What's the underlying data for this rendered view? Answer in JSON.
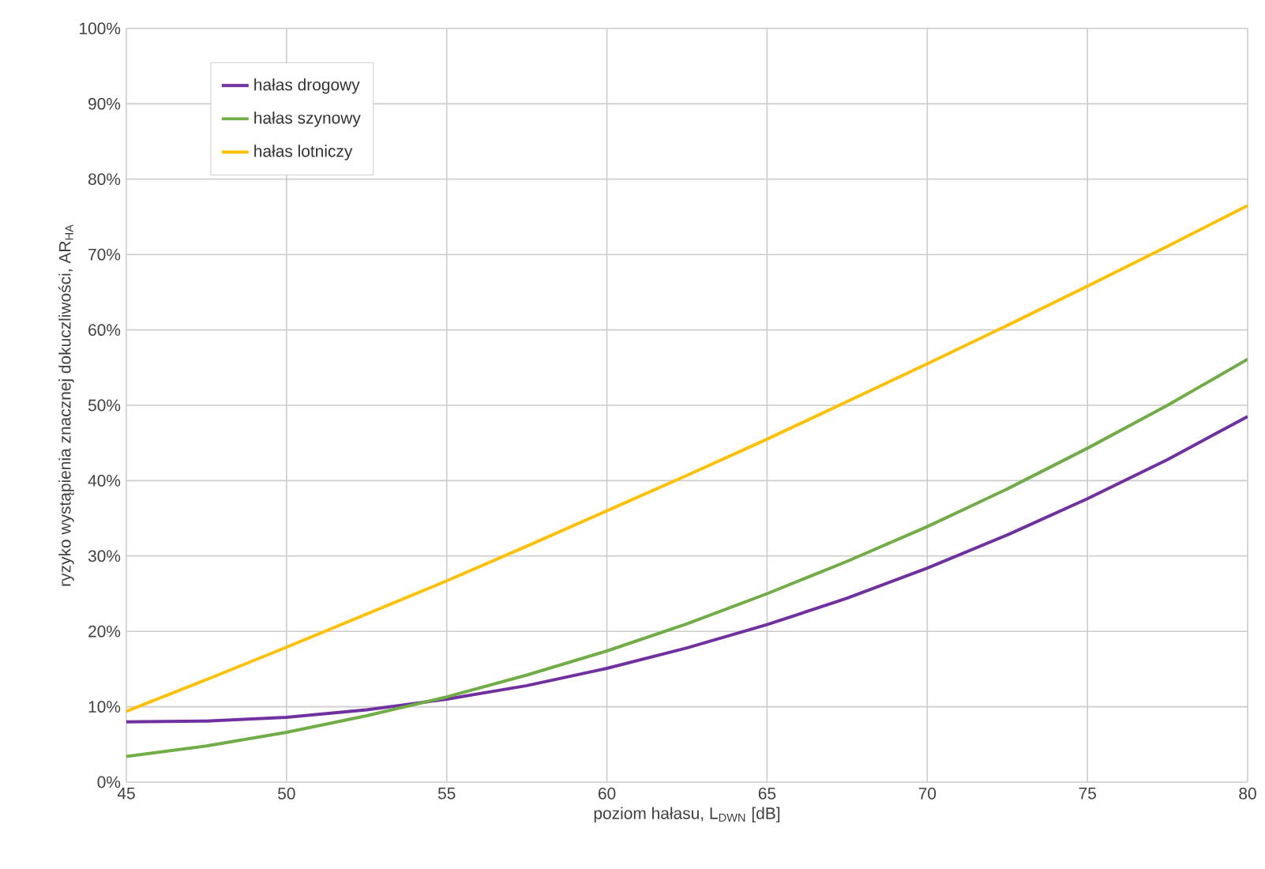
{
  "chart_data": {
    "type": "line",
    "xlabel": "poziom hałasu, L$_{DWN}$ [dB]",
    "ylabel": "ryzyko wystąpienia znacznej dokuczliwości, AR$_{HA}$",
    "x": [
      45,
      47.5,
      50,
      52.5,
      55,
      57.5,
      60,
      62.5,
      65,
      67.5,
      70,
      72.5,
      75,
      77.5,
      80
    ],
    "series": [
      {
        "name": "hałas drogowy",
        "color": "#7030a0",
        "values": [
          8.0,
          8.1,
          8.6,
          9.6,
          11.0,
          12.8,
          15.1,
          17.8,
          20.9,
          24.4,
          28.4,
          32.8,
          37.6,
          42.8,
          48.5
        ]
      },
      {
        "name": "hałas szynowy",
        "color": "#70ad47",
        "values": [
          3.4,
          4.8,
          6.6,
          8.8,
          11.3,
          14.2,
          17.4,
          21.0,
          25.0,
          29.3,
          33.9,
          38.9,
          44.3,
          50.0,
          56.1
        ]
      },
      {
        "name": "hałas lotniczy",
        "color": "#ffc000",
        "values": [
          9.4,
          13.6,
          17.9,
          22.3,
          26.7,
          31.3,
          36.0,
          40.7,
          45.5,
          50.5,
          55.5,
          60.6,
          65.8,
          71.1,
          76.5
        ]
      }
    ],
    "xlim": [
      45,
      80
    ],
    "xticks": [
      45,
      50,
      55,
      60,
      65,
      70,
      75,
      80
    ],
    "ylim": [
      0,
      100
    ],
    "yticks": [
      {
        "value": 0,
        "label": "0%"
      },
      {
        "value": 10,
        "label": "10%"
      },
      {
        "value": 20,
        "label": "20%"
      },
      {
        "value": 30,
        "label": "30%"
      },
      {
        "value": 40,
        "label": "40%"
      },
      {
        "value": 50,
        "label": "50%"
      },
      {
        "value": 60,
        "label": "60%"
      },
      {
        "value": 70,
        "label": "70%"
      },
      {
        "value": 80,
        "label": "80%"
      },
      {
        "value": 90,
        "label": "90%"
      },
      {
        "value": 100,
        "label": "100%"
      }
    ],
    "grid": true,
    "legend": "top left",
    "marker": "none",
    "line_style": "solid"
  }
}
